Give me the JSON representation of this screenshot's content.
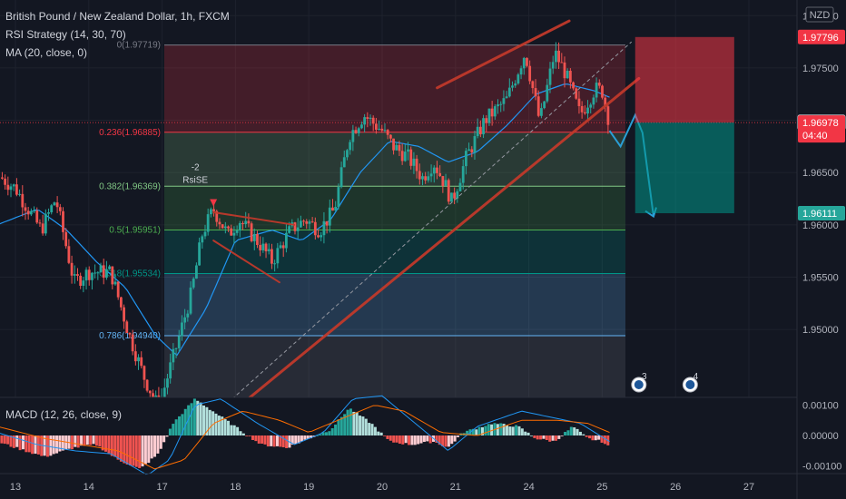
{
  "header": {
    "title": "British Pound / New Zealand Dollar, 1h, FXCM",
    "rsi_label": "RSI Strategy (14, 30, 70)",
    "ma_label": "MA (20, close, 0)"
  },
  "currency": "NZD",
  "colors": {
    "background": "#131722",
    "up": "#26a69a",
    "down": "#ef5350",
    "ma": "#2196f3",
    "trendline": "#c0392b",
    "forecast": "#2a9fd6"
  },
  "chart_data": {
    "type": "candlestick",
    "price_ylim": [
      1.9435,
      1.9815
    ],
    "price_ticks": [
      "1.98000",
      "1.97500",
      "1.97000",
      "1.96500",
      "1.96000",
      "1.95500",
      "1.95000"
    ],
    "price_tick_values": [
      1.98,
      1.975,
      1.97,
      1.965,
      1.96,
      1.955,
      1.95
    ],
    "x_ticks": [
      "13",
      "14",
      "17",
      "18",
      "19",
      "20",
      "21",
      "24",
      "25",
      "26",
      "27"
    ],
    "x_tick_values": [
      0,
      1,
      2,
      3,
      4,
      5,
      6,
      7,
      8,
      9,
      10
    ],
    "candle_keypoints": [
      [
        -0.25,
        1.9648
      ],
      [
        0.0,
        1.9635
      ],
      [
        0.35,
        1.9595
      ],
      [
        0.55,
        1.9625
      ],
      [
        0.8,
        1.9545
      ],
      [
        1.0,
        1.9555
      ],
      [
        1.3,
        1.9555
      ],
      [
        1.55,
        1.9495
      ],
      [
        1.75,
        1.9455
      ],
      [
        1.95,
        1.9425
      ],
      [
        2.2,
        1.9485
      ],
      [
        2.4,
        1.9535
      ],
      [
        2.55,
        1.9592
      ],
      [
        2.7,
        1.9615
      ],
      [
        2.9,
        1.959
      ],
      [
        3.05,
        1.9605
      ],
      [
        3.35,
        1.958
      ],
      [
        3.5,
        1.9565
      ],
      [
        3.75,
        1.9595
      ],
      [
        3.95,
        1.9605
      ],
      [
        4.15,
        1.9595
      ],
      [
        4.35,
        1.9615
      ],
      [
        4.55,
        1.9685
      ],
      [
        4.75,
        1.9705
      ],
      [
        5.0,
        1.969
      ],
      [
        5.15,
        1.9675
      ],
      [
        5.35,
        1.9665
      ],
      [
        5.55,
        1.9645
      ],
      [
        5.7,
        1.966
      ],
      [
        5.85,
        1.964
      ],
      [
        5.95,
        1.9622
      ],
      [
        6.15,
        1.9665
      ],
      [
        6.4,
        1.97
      ],
      [
        6.7,
        1.972
      ],
      [
        6.95,
        1.9765
      ],
      [
        7.15,
        1.9698
      ],
      [
        7.35,
        1.9765
      ],
      [
        7.5,
        1.9745
      ],
      [
        7.7,
        1.9705
      ],
      [
        7.9,
        1.973
      ],
      [
        8.0,
        1.9728
      ],
      [
        8.05,
        1.9712
      ],
      [
        8.1,
        1.9698
      ]
    ],
    "ma_keypoints": [
      [
        -0.25,
        1.96
      ],
      [
        0.3,
        1.9615
      ],
      [
        0.7,
        1.9595
      ],
      [
        1.1,
        1.9565
      ],
      [
        1.5,
        1.954
      ],
      [
        1.9,
        1.9495
      ],
      [
        2.2,
        1.9475
      ],
      [
        2.6,
        1.952
      ],
      [
        3.0,
        1.9585
      ],
      [
        3.5,
        1.9595
      ],
      [
        3.9,
        1.9585
      ],
      [
        4.3,
        1.9605
      ],
      [
        4.7,
        1.965
      ],
      [
        5.1,
        1.968
      ],
      [
        5.5,
        1.9675
      ],
      [
        5.9,
        1.966
      ],
      [
        6.3,
        1.967
      ],
      [
        6.7,
        1.9695
      ],
      [
        7.1,
        1.9725
      ],
      [
        7.5,
        1.9735
      ],
      [
        7.9,
        1.9728
      ],
      [
        8.1,
        1.9722
      ]
    ],
    "fibonacci": [
      {
        "label": "0(1.97719)",
        "level": 0,
        "price": 1.97719,
        "color": "#787b86"
      },
      {
        "label": "0.236(1.96885)",
        "level": 0.236,
        "price": 1.96885,
        "color": "#f23645"
      },
      {
        "label": "0.382(1.96369)",
        "level": 0.382,
        "price": 1.96369,
        "color": "#81c784"
      },
      {
        "label": "0.5(1.95951)",
        "level": 0.5,
        "price": 1.95951,
        "color": "#4caf50"
      },
      {
        "label": "0.618(1.95534)",
        "level": 0.618,
        "price": 1.95534,
        "color": "#009688"
      },
      {
        "label": "0.786(1.94940)",
        "level": 0.786,
        "price": 1.9494,
        "color": "#64b5f6"
      }
    ],
    "annotation": {
      "lines": [
        "-2",
        "RsiSE"
      ],
      "x": 2.7,
      "price": 1.9635
    },
    "trendlines": [
      {
        "from": [
          5.75,
          1.9731
        ],
        "to": [
          7.55,
          1.9795
        ]
      },
      {
        "from": [
          2.85,
          1.9415
        ],
        "to": [
          8.5,
          1.974
        ]
      },
      {
        "from": [
          2.7,
          1.9612
        ],
        "to": [
          3.8,
          1.96
        ]
      },
      {
        "from": [
          2.7,
          1.9585
        ],
        "to": [
          3.6,
          1.9545
        ]
      }
    ],
    "dashed_channel": {
      "from": [
        2.5,
        1.9405
      ],
      "to": [
        8.4,
        1.9775
      ]
    },
    "position": {
      "entry": 1.96978,
      "target": 1.96111,
      "stop": 1.97796,
      "x_start": 8.45,
      "x_end": 9.8
    },
    "forecast_path": [
      [
        8.1,
        1.969
      ],
      [
        8.25,
        1.9675
      ],
      [
        8.45,
        1.9705
      ],
      [
        8.55,
        1.9688
      ],
      [
        8.7,
        1.9608
      ]
    ],
    "price_tags": [
      {
        "text": "1.97796",
        "price": 1.97796,
        "bg": "#f23645",
        "fg": "#ffffff"
      },
      {
        "text": "1.96980",
        "price": 1.9698,
        "bg": "#131722",
        "fg": "#d1d4dc",
        "border": "#d1d4dc"
      },
      {
        "text": "1.96978",
        "price": 1.96978,
        "bg": "#f23645",
        "fg": "#ffffff",
        "sub": "04:40"
      },
      {
        "text": "1.96111",
        "price": 1.96111,
        "bg": "#26a69a",
        "fg": "#ffffff"
      }
    ],
    "events": [
      {
        "label": "3",
        "x": 8.5
      },
      {
        "label": "4",
        "x": 9.2
      }
    ],
    "macd": {
      "label": "MACD (12, 26, close, 9)",
      "ylim": [
        -0.00125,
        0.00125
      ],
      "ticks": [
        "0.00100",
        "0.00000",
        "-0.00100"
      ],
      "tick_values": [
        0.001,
        0.0,
        -0.001
      ],
      "hist_keypoints": [
        [
          -0.25,
          -0.0002
        ],
        [
          0.0,
          -0.0004
        ],
        [
          0.4,
          -0.0007
        ],
        [
          0.8,
          -0.0004
        ],
        [
          1.1,
          -0.0003
        ],
        [
          1.4,
          -0.0008
        ],
        [
          1.7,
          -0.0011
        ],
        [
          1.95,
          -0.0006
        ],
        [
          2.15,
          0.0004
        ],
        [
          2.45,
          0.0012
        ],
        [
          2.75,
          0.0007
        ],
        [
          3.05,
          0.0002
        ],
        [
          3.35,
          -0.0003
        ],
        [
          3.7,
          -0.0004
        ],
        [
          4.0,
          -0.0001
        ],
        [
          4.3,
          0.0002
        ],
        [
          4.55,
          0.0009
        ],
        [
          4.85,
          0.0004
        ],
        [
          5.1,
          -0.0002
        ],
        [
          5.4,
          -0.0003
        ],
        [
          5.7,
          -0.0002
        ],
        [
          5.9,
          -0.0004
        ],
        [
          6.1,
          0.0001
        ],
        [
          6.5,
          0.0004
        ],
        [
          6.85,
          0.0003
        ],
        [
          7.1,
          -0.0001
        ],
        [
          7.35,
          -0.0002
        ],
        [
          7.6,
          0.0003
        ],
        [
          7.8,
          -0.0001
        ],
        [
          8.0,
          -0.0002
        ],
        [
          8.1,
          -0.0004
        ]
      ],
      "macd_keypoints": [
        [
          -0.25,
          0.0001
        ],
        [
          0.3,
          -0.0003
        ],
        [
          0.8,
          -0.0005
        ],
        [
          1.3,
          -0.0006
        ],
        [
          1.8,
          -0.0013
        ],
        [
          2.1,
          -0.0008
        ],
        [
          2.45,
          0.001
        ],
        [
          2.8,
          0.0012
        ],
        [
          3.3,
          0.0004
        ],
        [
          3.8,
          -0.0003
        ],
        [
          4.2,
          0.0001
        ],
        [
          4.6,
          0.0012
        ],
        [
          5.0,
          0.0013
        ],
        [
          5.4,
          0.0005
        ],
        [
          5.9,
          -0.0005
        ],
        [
          6.3,
          0.0003
        ],
        [
          6.9,
          0.0008
        ],
        [
          7.3,
          0.0006
        ],
        [
          7.7,
          0.0004
        ],
        [
          8.1,
          -0.0002
        ]
      ],
      "signal_keypoints": [
        [
          -0.25,
          0.0003
        ],
        [
          0.4,
          -0.0001
        ],
        [
          0.9,
          -0.0003
        ],
        [
          1.4,
          -0.0005
        ],
        [
          1.9,
          -0.0011
        ],
        [
          2.3,
          -0.0008
        ],
        [
          2.7,
          0.0004
        ],
        [
          3.1,
          0.0008
        ],
        [
          3.6,
          0.0005
        ],
        [
          4.0,
          0.0001
        ],
        [
          4.5,
          0.0006
        ],
        [
          4.9,
          0.001
        ],
        [
          5.3,
          0.0008
        ],
        [
          5.8,
          0.0001
        ],
        [
          6.3,
          0.0
        ],
        [
          6.9,
          0.0005
        ],
        [
          7.4,
          0.0005
        ],
        [
          7.8,
          0.0004
        ],
        [
          8.1,
          0.0001
        ]
      ]
    }
  }
}
